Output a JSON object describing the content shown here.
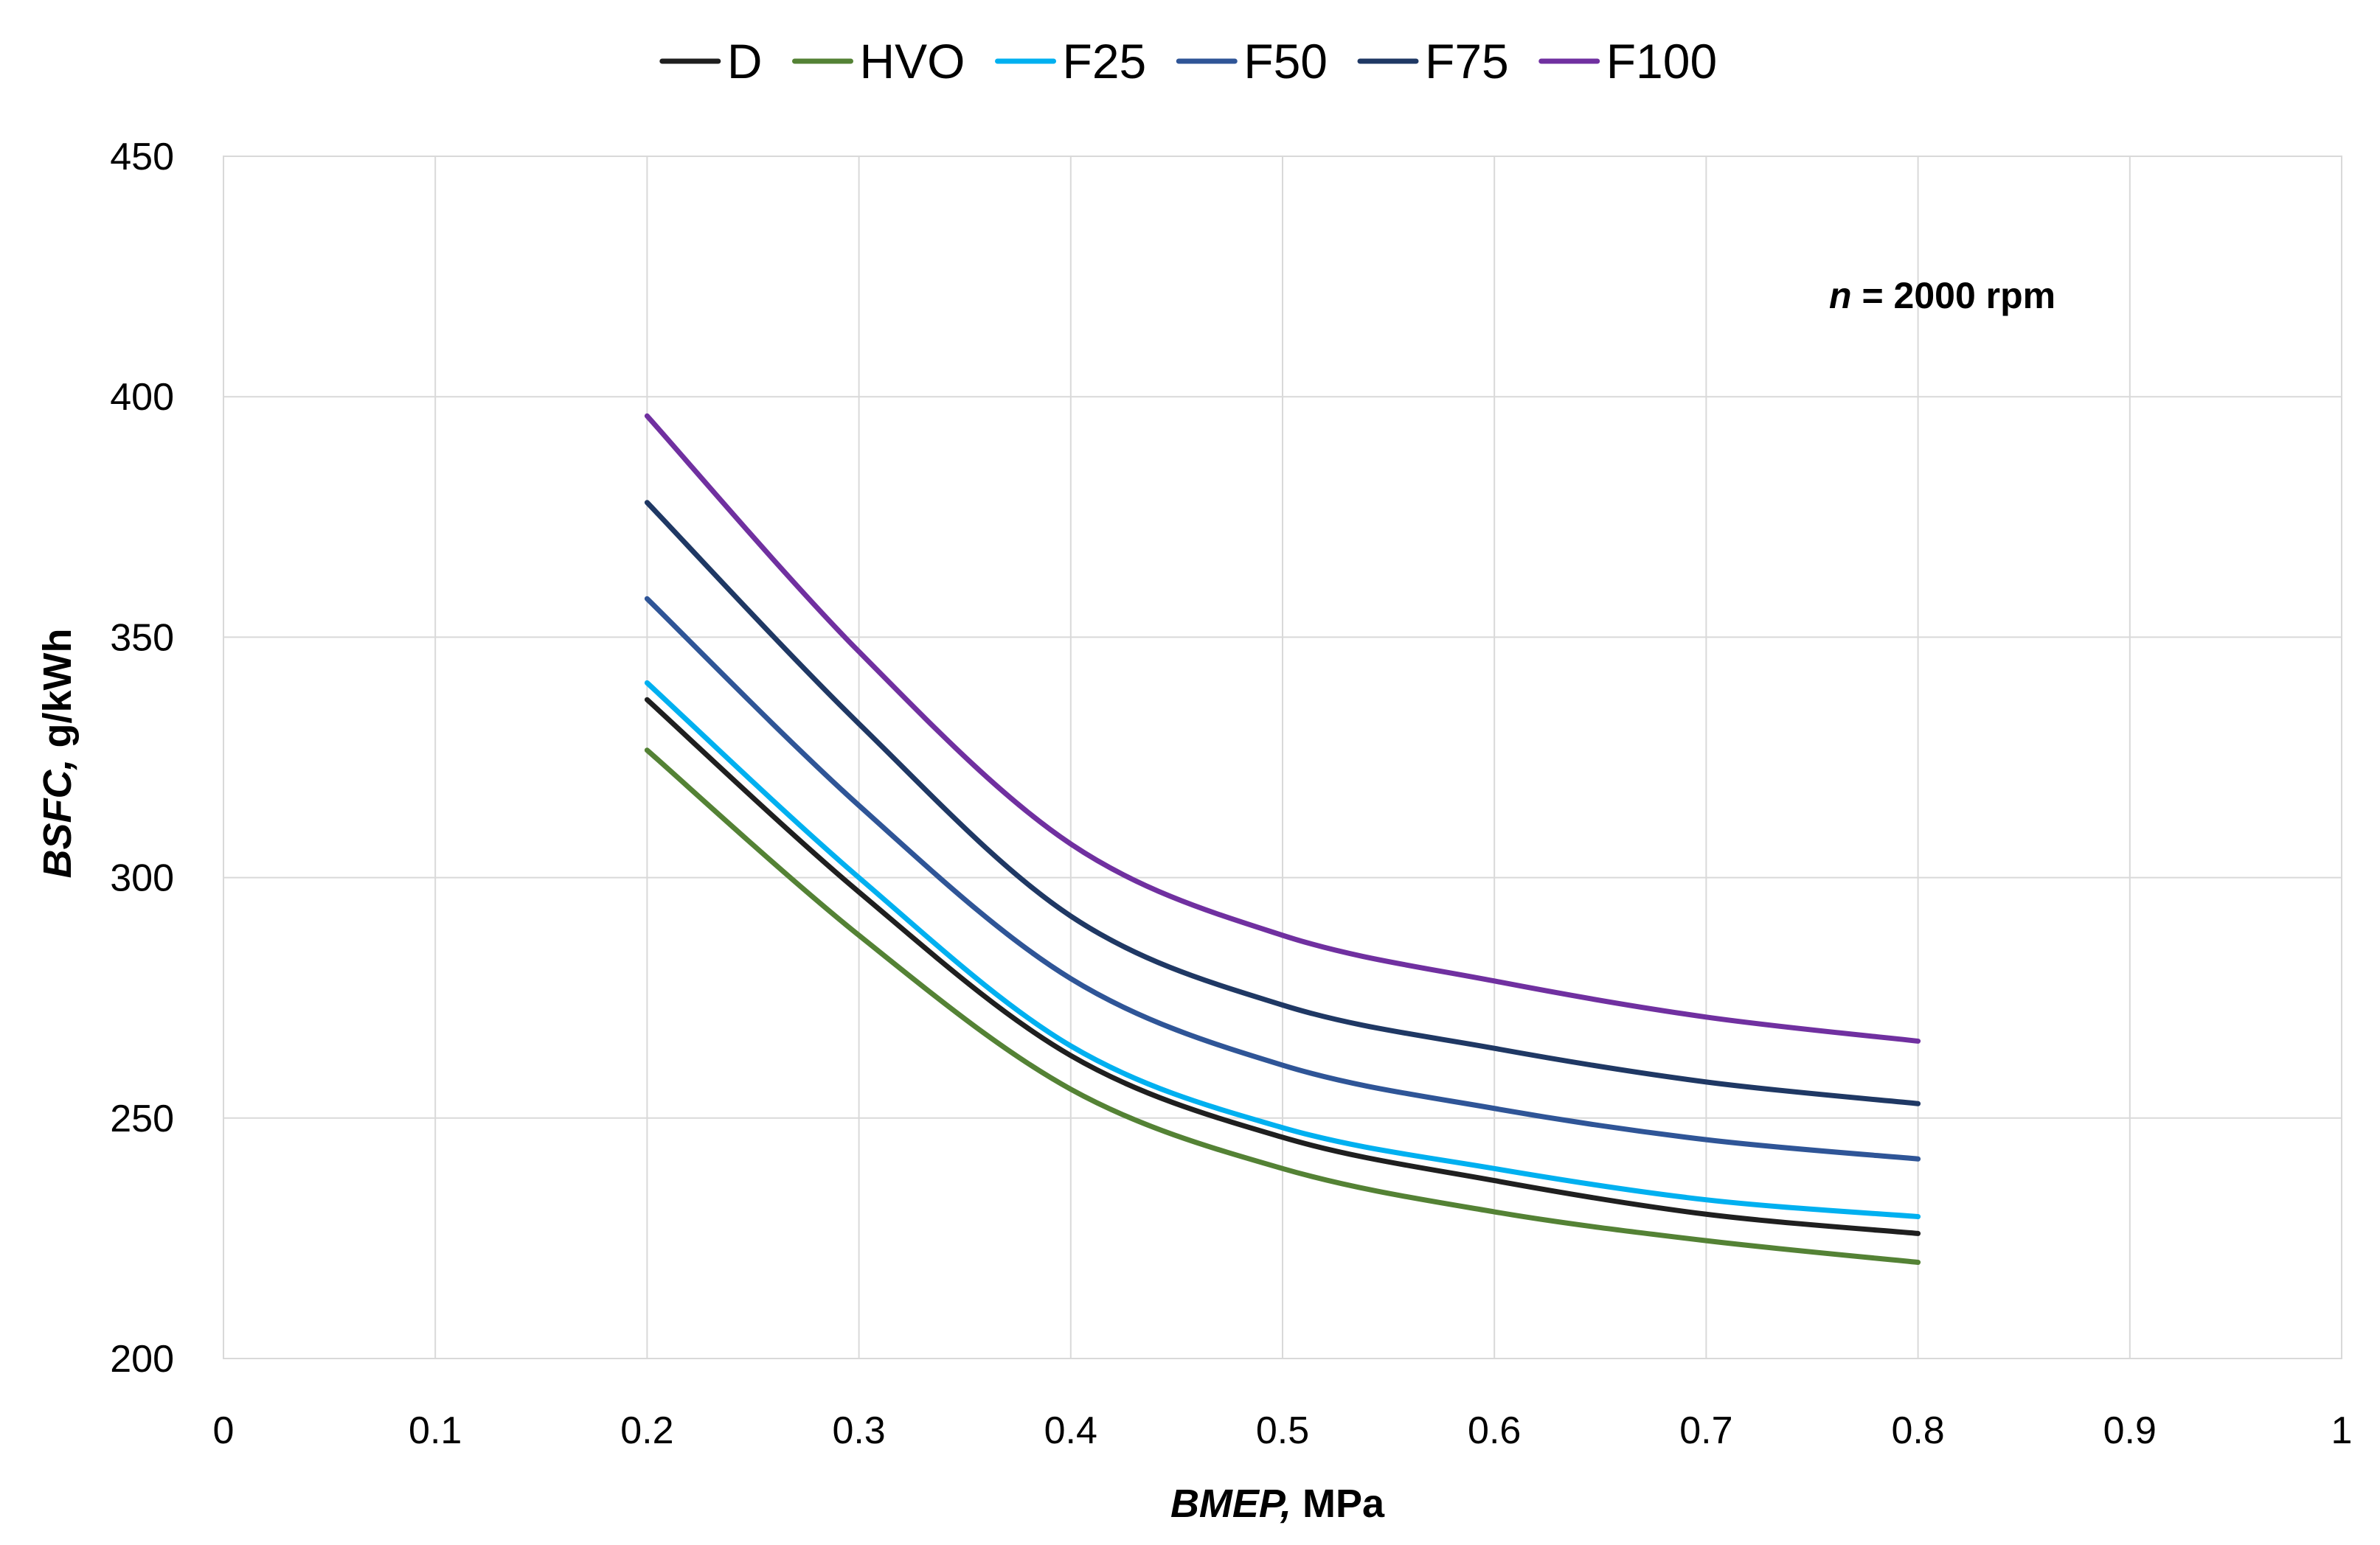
{
  "chart_data": {
    "type": "line",
    "title": "",
    "xlabel_italic": "BMEP,",
    "xlabel_rest": " MPa",
    "ylabel_italic": "BSFC,",
    "ylabel_rest": " g/kWh",
    "xlim": [
      0,
      1
    ],
    "ylim": [
      200,
      450
    ],
    "x_ticks": [
      0,
      0.1,
      0.2,
      0.3,
      0.4,
      0.5,
      0.6,
      0.7,
      0.8,
      0.9,
      1
    ],
    "x_tick_labels": [
      "0",
      "0.1",
      "0.2",
      "0.3",
      "0.4",
      "0.5",
      "0.6",
      "0.7",
      "0.8",
      "0.9",
      "1"
    ],
    "y_ticks": [
      200,
      250,
      300,
      350,
      400,
      450
    ],
    "y_tick_labels": [
      "200",
      "250",
      "300",
      "350",
      "400",
      "450"
    ],
    "grid": true,
    "legend_position": "top-center",
    "annotation": {
      "italic": "n",
      "rest": " = 2000 rpm"
    },
    "x": [
      0.2,
      0.3,
      0.4,
      0.5,
      0.6,
      0.7,
      0.8
    ],
    "series": [
      {
        "name": "D",
        "color": "#1f1f1f",
        "values": [
          337,
          297,
          263,
          246,
          237,
          230,
          226
        ]
      },
      {
        "name": "HVO",
        "color": "#548235",
        "values": [
          326.5,
          288,
          256,
          239.5,
          230.5,
          224.5,
          220
        ]
      },
      {
        "name": "F25",
        "color": "#00b0f0",
        "values": [
          340.5,
          300,
          265,
          248,
          239.5,
          233,
          229.5
        ]
      },
      {
        "name": "F50",
        "color": "#2f5597",
        "values": [
          358,
          315,
          279,
          261,
          252,
          245.5,
          241.5
        ]
      },
      {
        "name": "F75",
        "color": "#1f3864",
        "values": [
          378,
          332,
          292,
          273.5,
          264.5,
          257.5,
          253
        ]
      },
      {
        "name": "F100",
        "color": "#7030a0",
        "values": [
          396,
          347,
          307,
          288,
          278.5,
          271,
          266
        ]
      }
    ]
  }
}
